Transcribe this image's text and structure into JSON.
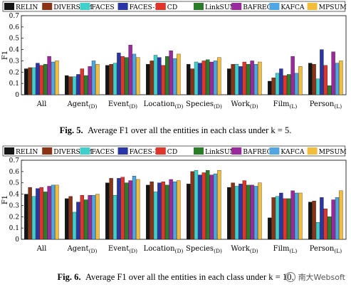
{
  "chart_data": [
    {
      "type": "bar",
      "ylabel": "F1",
      "ylim": [
        0,
        0.7
      ],
      "yticks": [
        "0",
        "0.1",
        "0.2",
        "0.3",
        "0.4",
        "0.5",
        "0.6",
        "0.7"
      ],
      "categories": [
        "All",
        "Agent",
        "Event",
        "Location",
        "Species",
        "Work",
        "Film",
        "Person"
      ],
      "category_subscripts": [
        "",
        "(D)",
        "(D)",
        "(D)",
        "(D)",
        "(D)",
        "(L)",
        "(L)"
      ],
      "legend_placement": "top",
      "series": [
        {
          "name": "RELIN",
          "values": [
            0.23,
            0.17,
            0.26,
            0.27,
            0.27,
            0.23,
            0.12,
            0.28
          ]
        },
        {
          "name": "DIVERSUM",
          "values": [
            0.24,
            0.16,
            0.27,
            0.3,
            0.23,
            0.27,
            0.15,
            0.27
          ]
        },
        {
          "name": "FACES",
          "values": [
            0.24,
            0.16,
            0.28,
            0.35,
            0.29,
            0.27,
            0.19,
            0.14
          ]
        },
        {
          "name": "FACES-E",
          "values": [
            0.28,
            0.18,
            0.37,
            0.33,
            0.28,
            0.25,
            0.23,
            0.4
          ]
        },
        {
          "name": "CD",
          "values": [
            0.26,
            0.23,
            0.34,
            0.26,
            0.3,
            0.29,
            0.17,
            0.26
          ]
        },
        {
          "name": "LinkSUM",
          "values": [
            0.27,
            0.17,
            0.33,
            0.34,
            0.31,
            0.27,
            0.18,
            0.08
          ]
        },
        {
          "name": "BAFREC",
          "values": [
            0.34,
            0.25,
            0.44,
            0.39,
            0.29,
            0.3,
            0.34,
            0.38
          ]
        },
        {
          "name": "KAFCA",
          "values": [
            0.29,
            0.3,
            0.36,
            0.32,
            0.3,
            0.27,
            0.19,
            0.28
          ]
        },
        {
          "name": "MPSUM",
          "values": [
            0.3,
            0.27,
            0.33,
            0.36,
            0.33,
            0.29,
            0.25,
            0.3
          ]
        }
      ]
    },
    {
      "type": "bar",
      "ylabel": "F1",
      "ylim": [
        0,
        0.7
      ],
      "yticks": [
        "0",
        "0.1",
        "0.2",
        "0.3",
        "0.4",
        "0.5",
        "0.6",
        "0.7"
      ],
      "categories": [
        "All",
        "Agent",
        "Event",
        "Location",
        "Species",
        "Work",
        "Film",
        "Person"
      ],
      "category_subscripts": [
        "",
        "(D)",
        "(D)",
        "(D)",
        "(D)",
        "(D)",
        "(L)",
        "(L)"
      ],
      "legend_placement": "top",
      "series": [
        {
          "name": "RELIN",
          "values": [
            0.4,
            0.36,
            0.5,
            0.48,
            0.49,
            0.46,
            0.19,
            0.33
          ]
        },
        {
          "name": "DIVERSUM",
          "values": [
            0.46,
            0.38,
            0.54,
            0.51,
            0.6,
            0.5,
            0.37,
            0.34
          ]
        },
        {
          "name": "FACES",
          "values": [
            0.38,
            0.24,
            0.39,
            0.42,
            0.61,
            0.47,
            0.38,
            0.15
          ]
        },
        {
          "name": "FACES-E",
          "values": [
            0.45,
            0.33,
            0.54,
            0.5,
            0.57,
            0.49,
            0.41,
            0.37
          ]
        },
        {
          "name": "CD",
          "values": [
            0.46,
            0.39,
            0.55,
            0.51,
            0.59,
            0.52,
            0.36,
            0.27
          ]
        },
        {
          "name": "LinkSUM",
          "values": [
            0.42,
            0.35,
            0.5,
            0.48,
            0.61,
            0.48,
            0.36,
            0.2
          ]
        },
        {
          "name": "BAFREC",
          "values": [
            0.47,
            0.39,
            0.52,
            0.53,
            0.57,
            0.48,
            0.43,
            0.35
          ]
        },
        {
          "name": "KAFCA",
          "values": [
            0.48,
            0.39,
            0.56,
            0.51,
            0.58,
            0.47,
            0.41,
            0.37
          ]
        },
        {
          "name": "MPSUM",
          "values": [
            0.48,
            0.4,
            0.53,
            0.52,
            0.61,
            0.5,
            0.41,
            0.43
          ]
        }
      ]
    }
  ],
  "colors": [
    "#151515",
    "#8b3314",
    "#3fd0cc",
    "#2a36a6",
    "#e1352c",
    "#2b7d2a",
    "#9a2a9c",
    "#4fa6e3",
    "#f2bd3a"
  ],
  "captions": [
    {
      "label": "Fig. 5.",
      "text": "Average F1 over all the entities in each class under k = 5."
    },
    {
      "label": "Fig. 6.",
      "text": "Average F1 over all the entities in each class under k = 10."
    }
  ],
  "watermark": {
    "text": "南大Websoft",
    "icon": "wechat-icon"
  }
}
